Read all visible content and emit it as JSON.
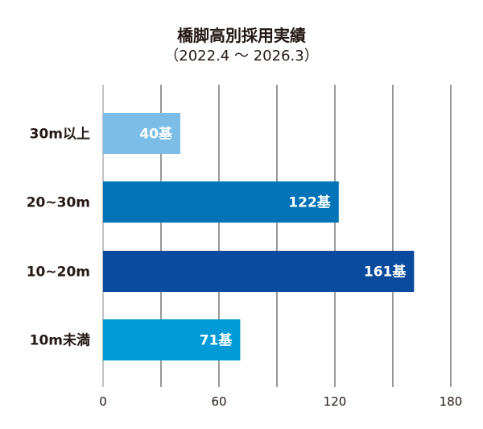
{
  "chart_data": {
    "type": "bar",
    "orientation": "horizontal",
    "title": "橋脚高別採用実績",
    "subtitle": "（2022.4 〜 2026.3）",
    "categories": [
      "30m以上",
      "20~30m",
      "10~20m",
      "10m未満"
    ],
    "values": [
      40,
      122,
      161,
      71
    ],
    "data_labels": [
      "40基",
      "122基",
      "161基",
      "71基"
    ],
    "bar_colors": [
      "#7bbde6",
      "#0373b7",
      "#0a4b9e",
      "#009ad6"
    ],
    "xlim": [
      0,
      180
    ],
    "xticks": [
      0,
      60,
      120,
      180
    ],
    "gridlines": [
      0,
      30,
      60,
      90,
      120,
      150,
      180
    ],
    "grid": true,
    "xlabel": "",
    "ylabel": ""
  }
}
